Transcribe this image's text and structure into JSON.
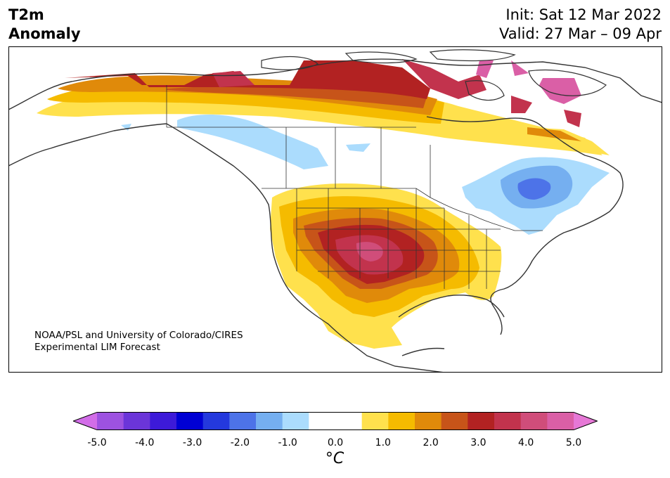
{
  "title": {
    "line1": "T2m",
    "line2": "Anomaly"
  },
  "dates": {
    "init": "Init: Sat 12 Mar 2022",
    "valid": "Valid: 27 Mar – 09 Apr"
  },
  "credit": {
    "line1": "NOAA/PSL and University of Colorado/CIRES",
    "line2": "Experimental LIM Forecast"
  },
  "colorbar": {
    "ticks": [
      "-5.0",
      "-4.0",
      "-3.0",
      "-2.0",
      "-1.0",
      "0.0",
      "1.0",
      "2.0",
      "3.0",
      "4.0",
      "5.0"
    ],
    "unit": "°C",
    "colors": [
      "#d26de8",
      "#9d52e0",
      "#6b35d9",
      "#3d1ad8",
      "#0000d4",
      "#2439dd",
      "#4d73e8",
      "#75aff0",
      "#abdcfd",
      "#ffffff",
      "#ffffff",
      "#ffe14d",
      "#f5bb00",
      "#e08a0a",
      "#c75419",
      "#b22222",
      "#c2334d",
      "#d04d7a",
      "#da5fa6",
      "#e678d6"
    ]
  },
  "map": {
    "region": "North America",
    "features": [
      {
        "name": "warm-anomaly-southwest-central-us",
        "max_anomaly_c": 3.5
      },
      {
        "name": "warm-anomaly-northern-canada",
        "max_anomaly_c": 4.5
      },
      {
        "name": "cool-anomaly-quebec-ontario",
        "min_anomaly_c": -2.0
      },
      {
        "name": "cool-anomaly-western-canada",
        "min_anomaly_c": -1.0
      }
    ]
  }
}
